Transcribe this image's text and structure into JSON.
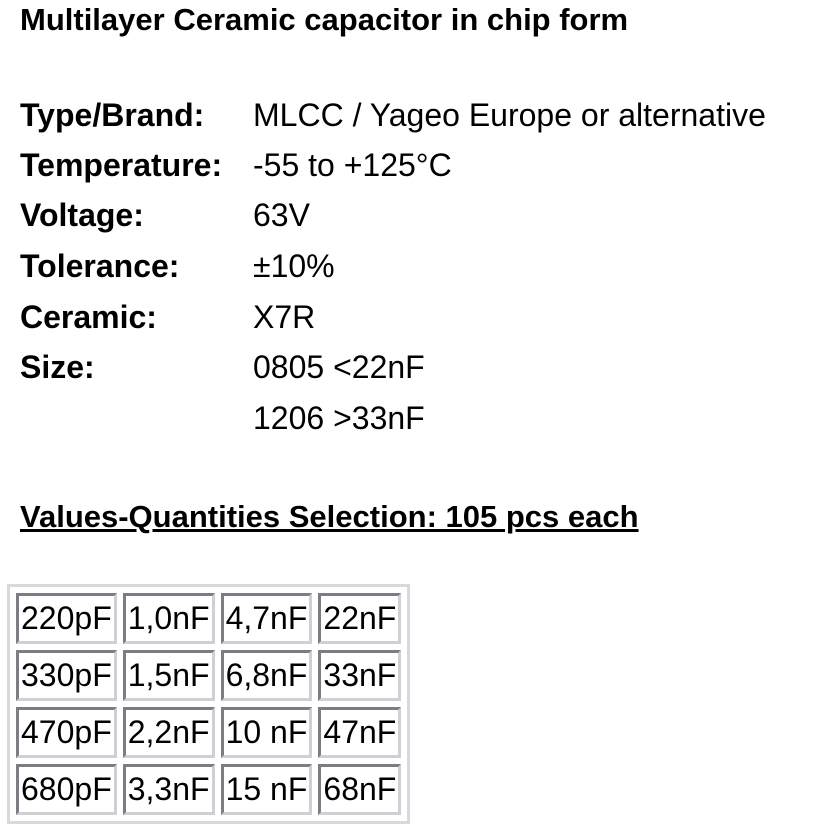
{
  "title": "Multilayer Ceramic capacitor in chip form",
  "specs": [
    {
      "label": "Type/Brand:",
      "value": "MLCC / Yageo Europe or alternative"
    },
    {
      "label": "Temperature:",
      "value": "-55 to +125°C"
    },
    {
      "label": "Voltage:",
      "value": "63V"
    },
    {
      "label": "Tolerance:",
      "value": "±10%"
    },
    {
      "label": "Ceramic:",
      "value": "X7R"
    },
    {
      "label": "Size:",
      "value": "0805 <22nF"
    },
    {
      "label": "",
      "value": "1206 >33nF"
    }
  ],
  "selection_heading": "Values-Quantities Selection: 105 pcs each",
  "table": [
    [
      "220pF",
      "1,0nF",
      "4,7nF",
      "22nF"
    ],
    [
      "330pF",
      "1,5nF",
      "6,8nF",
      "33nF"
    ],
    [
      "470pF",
      "2,2nF",
      "10 nF",
      "47nF"
    ],
    [
      "680pF",
      "3,3nF",
      "15 nF",
      "68nF"
    ]
  ]
}
